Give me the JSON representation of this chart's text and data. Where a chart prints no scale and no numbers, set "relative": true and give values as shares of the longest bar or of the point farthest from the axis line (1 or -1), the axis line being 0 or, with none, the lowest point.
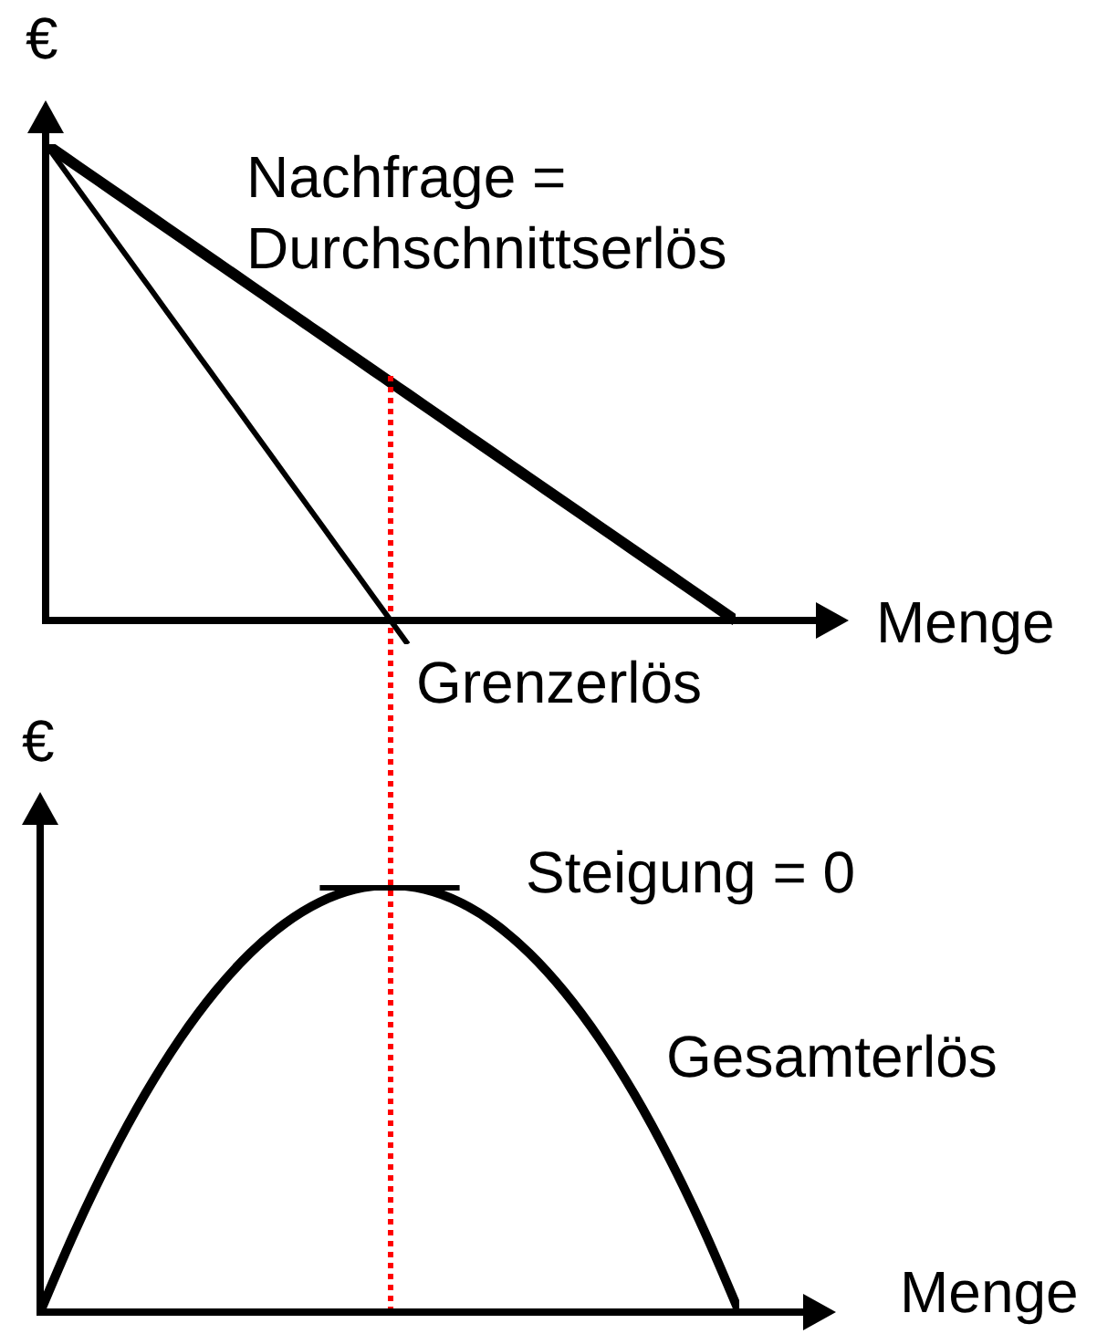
{
  "chart_data": [
    {
      "type": "line",
      "relative": true,
      "ylabel": "€",
      "xlabel": "Menge",
      "categories": [
        null,
        null,
        null,
        null,
        null,
        null,
        null,
        null,
        null,
        null,
        null,
        null,
        null,
        null,
        null,
        null,
        null,
        null,
        null,
        null,
        null,
        null,
        null,
        null,
        null,
        null,
        null,
        null,
        null,
        null,
        null,
        null,
        null,
        null,
        null,
        null,
        null,
        null,
        null,
        null,
        null
      ],
      "series": [
        {
          "name": "Nachfrage = Durchschnittserlös",
          "color": "#000000",
          "values": [
            1,
            0.975,
            0.95,
            0.925,
            0.9,
            0.875,
            0.85,
            0.825,
            0.8,
            0.775,
            0.75,
            0.725,
            0.7,
            0.675,
            0.65,
            0.625,
            0.6,
            0.575,
            0.55,
            0.525,
            0.5,
            0.475,
            0.45,
            0.425,
            0.4,
            0.375,
            0.35,
            0.325,
            0.3,
            0.275,
            0.25,
            0.225,
            0.2,
            0.175,
            0.15,
            0.125,
            0.1,
            0.075,
            0.05,
            0.025,
            0
          ]
        },
        {
          "name": "Grenzerlös",
          "color": "#000000",
          "values": [
            1,
            0.95,
            0.9,
            0.85,
            0.8,
            0.75,
            0.7,
            0.65,
            0.6,
            0.55,
            0.5,
            0.45,
            0.4,
            0.35,
            0.3,
            0.25,
            0.2,
            0.15,
            0.1,
            0.05,
            0,
            -0.05,
            null,
            null,
            null,
            null,
            null,
            null,
            null,
            null,
            null,
            null,
            null,
            null,
            null,
            null,
            null,
            null,
            null,
            null,
            null
          ]
        }
      ]
    },
    {
      "type": "line",
      "relative": true,
      "ylabel": "€",
      "xlabel": "Menge",
      "categories": [
        null,
        null,
        null,
        null,
        null,
        null,
        null,
        null,
        null,
        null,
        null,
        null,
        null,
        null,
        null,
        null,
        null,
        null,
        null,
        null,
        null
      ],
      "series": [
        {
          "name": "Gesamterlös",
          "color": "#000000",
          "values": [
            0,
            0.19,
            0.36,
            0.51,
            0.64,
            0.75,
            0.84,
            0.91,
            0.96,
            0.99,
            1,
            0.99,
            0.96,
            0.91,
            0.84,
            0.75,
            0.64,
            0.51,
            0.36,
            0.19,
            0
          ]
        },
        {
          "color": "#000000",
          "values": [
            null,
            null,
            null,
            null,
            null,
            null,
            null,
            null,
            1,
            1,
            1,
            1,
            1,
            null,
            null,
            null,
            null,
            null,
            null,
            null,
            null
          ]
        }
      ],
      "annotations": [
        "Steigung = 0"
      ]
    }
  ]
}
